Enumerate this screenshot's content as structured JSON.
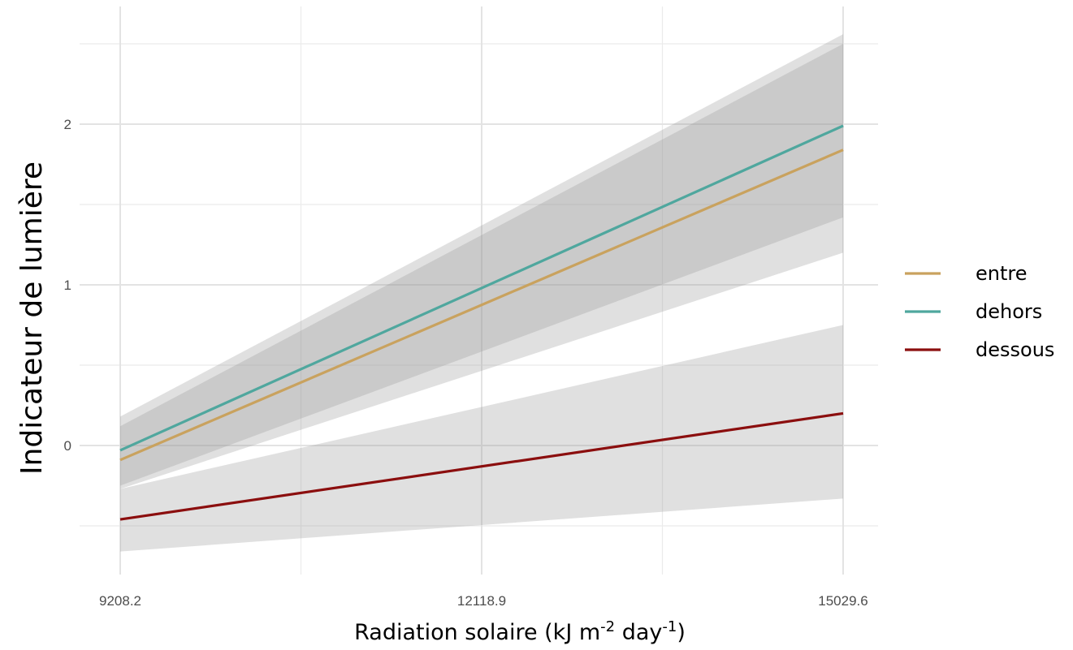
{
  "chart_data": {
    "type": "line",
    "title": "",
    "xlabel": {
      "main": "Radiation solaire (kJ m",
      "sup1": "-2",
      "mid": " day",
      "sup2": "-1",
      "end": ")"
    },
    "ylabel": "Indicateur de lumière",
    "xlim": [
      9208.2,
      15029.6
    ],
    "ylim": [
      -0.78,
      2.72
    ],
    "x_ticks": [
      {
        "value": 9208.2,
        "label": "9208.2"
      },
      {
        "value": 12118.9,
        "label": "12118.9"
      },
      {
        "value": 15029.6,
        "label": "15029.6"
      }
    ],
    "y_ticks": [
      {
        "value": 0,
        "label": "0"
      },
      {
        "value": 1,
        "label": "1"
      },
      {
        "value": 2,
        "label": "2"
      }
    ],
    "grid": true,
    "legend_position": "right",
    "x": [
      9208.2,
      15029.6
    ],
    "series": [
      {
        "name": "entre",
        "color": "#C9A25E",
        "values": [
          -0.09,
          1.84
        ],
        "lower": [
          -0.27,
          1.2
        ],
        "upper": [
          0.12,
          2.5
        ]
      },
      {
        "name": "dehors",
        "color": "#4FA79E",
        "values": [
          -0.03,
          1.99
        ],
        "lower": [
          -0.25,
          1.42
        ],
        "upper": [
          0.18,
          2.56
        ]
      },
      {
        "name": "dessous",
        "color": "#8B0E0E",
        "values": [
          -0.46,
          0.2
        ],
        "lower": [
          -0.66,
          -0.33
        ],
        "upper": [
          -0.27,
          0.75
        ]
      }
    ]
  }
}
